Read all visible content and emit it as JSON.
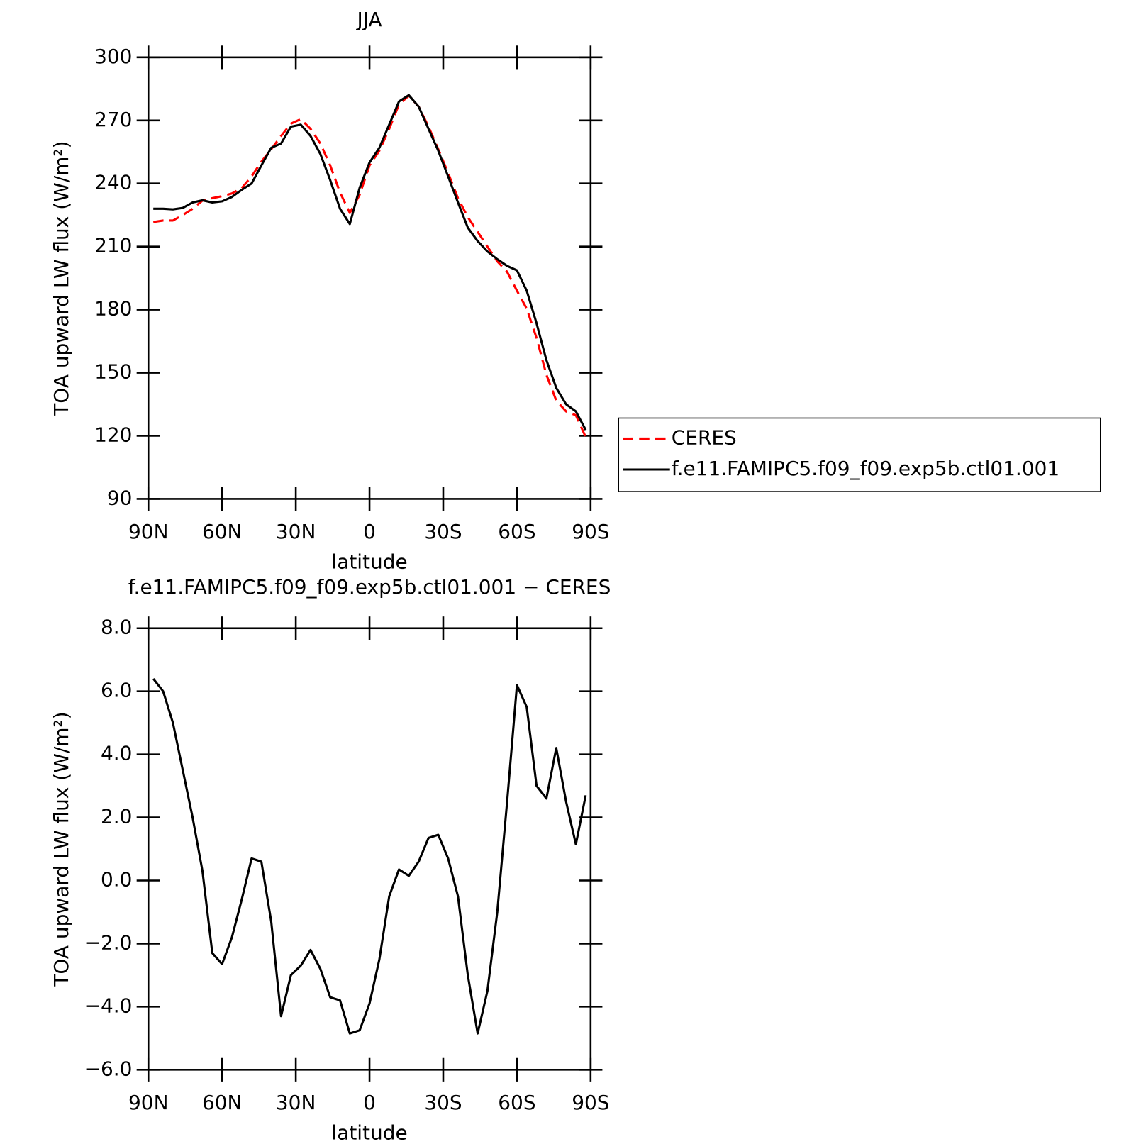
{
  "chart_data": [
    {
      "type": "line",
      "title": "JJA",
      "xlabel": "latitude",
      "ylabel": "TOA upward LW flux (W/m²)",
      "xlim": [
        90,
        -90
      ],
      "xticks": [
        {
          "value": 90,
          "label": "90N"
        },
        {
          "value": 60,
          "label": "60N"
        },
        {
          "value": 30,
          "label": "30N"
        },
        0,
        {
          "value": -30,
          "label": "30S"
        },
        {
          "value": -60,
          "label": "60S"
        },
        {
          "value": -90,
          "label": "90S"
        }
      ],
      "ylim": [
        90,
        300
      ],
      "yticks": [
        90,
        120,
        150,
        180,
        210,
        240,
        270,
        300
      ],
      "legend": "right",
      "x": [
        88,
        84,
        80,
        76,
        72,
        68,
        64,
        60,
        56,
        52,
        48,
        44,
        40,
        36,
        32,
        28,
        24,
        20,
        16,
        12,
        8,
        4,
        0,
        -4,
        -8,
        -12,
        -16,
        -20,
        -24,
        -28,
        -32,
        -36,
        -40,
        -44,
        -48,
        -52,
        -56,
        -60,
        -64,
        -68,
        -72,
        -76,
        -80,
        -84,
        -88
      ],
      "series": [
        {
          "name": "CERES",
          "color": "#ff0000",
          "dashed": true,
          "values": [
            221.7,
            222.4,
            222.4,
            225,
            228,
            231.9,
            233,
            234,
            235.3,
            237.8,
            243.4,
            250.4,
            256.3,
            262.6,
            268.5,
            270.6,
            266,
            259,
            248.6,
            235.7,
            226,
            234.7,
            248.6,
            255.6,
            266,
            277.6,
            281.8,
            276.6,
            267,
            256.3,
            245,
            233,
            224,
            217,
            210,
            203,
            198,
            189,
            180.5,
            166.5,
            149,
            136.8,
            131.6,
            129.8,
            119.4
          ]
        },
        {
          "name": "f.e11.FAMIPC5.f09_f09.exp5b.ctl01.001",
          "color": "#000000",
          "dashed": false,
          "values": [
            228,
            228,
            227.7,
            228.4,
            231,
            232,
            231,
            231.5,
            233.6,
            237,
            240,
            248.6,
            257,
            259,
            267,
            268,
            262.6,
            254,
            241.6,
            228,
            220.7,
            238,
            250,
            257,
            268,
            279,
            282,
            276.6,
            266,
            255.6,
            243.4,
            231,
            219,
            212.6,
            207.7,
            204,
            200.8,
            198.7,
            189,
            173.5,
            156,
            142.8,
            135,
            131.6,
            122.8
          ]
        }
      ]
    },
    {
      "type": "line",
      "title": "f.e11.FAMIPC5.f09_f09.exp5b.ctl01.001 − CERES",
      "xlabel": "latitude",
      "ylabel": "TOA upward LW flux (W/m²)",
      "xlim": [
        90,
        -90
      ],
      "xticks": [
        {
          "value": 90,
          "label": "90N"
        },
        {
          "value": 60,
          "label": "60N"
        },
        {
          "value": 30,
          "label": "30N"
        },
        0,
        {
          "value": -30,
          "label": "30S"
        },
        {
          "value": -60,
          "label": "60S"
        },
        {
          "value": -90,
          "label": "90S"
        }
      ],
      "ylim": [
        -6,
        8
      ],
      "yticks": [
        {
          "value": -6,
          "label": "−6.0"
        },
        {
          "value": -4,
          "label": "−4.0"
        },
        {
          "value": -2,
          "label": "−2.0"
        },
        {
          "value": 0,
          "label": "0.0"
        },
        {
          "value": 2,
          "label": "2.0"
        },
        {
          "value": 4,
          "label": "4.0"
        },
        {
          "value": 6,
          "label": "6.0"
        },
        {
          "value": 8,
          "label": "8.0"
        }
      ],
      "x": [
        88,
        84,
        80,
        76,
        72,
        68,
        64,
        60,
        56,
        52,
        48,
        44,
        40,
        36,
        32,
        28,
        24,
        20,
        16,
        12,
        8,
        4,
        0,
        -4,
        -8,
        -12,
        -16,
        -20,
        -24,
        -28,
        -32,
        -36,
        -40,
        -44,
        -48,
        -52,
        -56,
        -60,
        -64,
        -68,
        -72,
        -76,
        -80,
        -84,
        -88
      ],
      "series": [
        {
          "color": "#000000",
          "values": [
            6.4,
            6.0,
            5.0,
            3.5,
            2.0,
            0.3,
            -2.3,
            -2.65,
            -1.8,
            -0.6,
            0.7,
            0.6,
            -1.3,
            -4.3,
            -3.0,
            -2.7,
            -2.2,
            -2.8,
            -3.7,
            -3.8,
            -4.85,
            -4.75,
            -3.9,
            -2.5,
            -0.5,
            0.35,
            0.15,
            0.6,
            1.35,
            1.45,
            0.7,
            -0.5,
            -3.0,
            -4.85,
            -3.5,
            -1.0,
            2.5,
            6.2,
            5.5,
            3.0,
            2.6,
            4.2,
            2.5,
            1.15,
            2.7
          ]
        }
      ]
    }
  ]
}
